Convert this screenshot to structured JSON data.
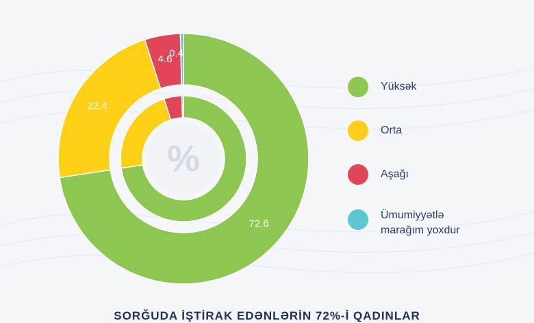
{
  "chart_data": {
    "type": "pie",
    "center_symbol": "%",
    "categories": [
      "Yüksək",
      "Orta",
      "Aşağı",
      "Ümumiyyətlə marağım yoxdur"
    ],
    "values": [
      72.6,
      22.4,
      4.6,
      0.4
    ],
    "value_labels": [
      "72.6",
      "22.4",
      "4.6",
      "0.4"
    ],
    "colors": [
      "#8dc651",
      "#fdd017",
      "#e04657",
      "#5cc6d1"
    ],
    "legend_position": "right"
  },
  "legend": {
    "items": [
      {
        "label": "Yüksək",
        "color": "#8dc651"
      },
      {
        "label": "Orta",
        "color": "#fdd017"
      },
      {
        "label": "Aşağı",
        "color": "#e04657"
      },
      {
        "label": "Ümumiyyətlə marağım yoxdur",
        "color": "#5cc6d1"
      }
    ]
  },
  "caption": "SORĞUDA İŞTİRAK EDƏNLƏRİN 72%-İ QADINLAR"
}
